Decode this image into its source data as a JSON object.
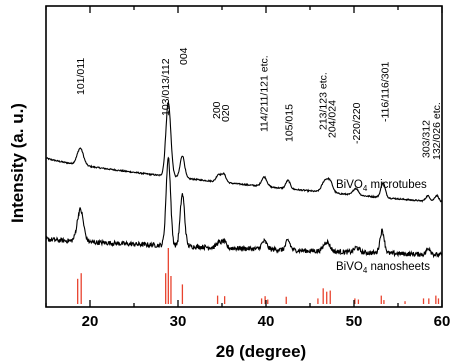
{
  "chart_data": {
    "type": "line",
    "xlabel": "2θ (degree)",
    "ylabel": "Intensity (a. u.)",
    "xlim": [
      15,
      60
    ],
    "x_ticks": [
      20,
      30,
      40,
      50,
      60
    ],
    "y_ticks_shown": false,
    "series": [
      {
        "name": "BiVO4 microtubes",
        "label_main": "BiVO",
        "label_sub": "4",
        "label_rest": " microtubes",
        "color": "#000000",
        "baseline_start": 0.86,
        "baseline_end": 0.06,
        "noise": 0.012,
        "peaks": [
          {
            "x": 18.9,
            "height": 0.3,
            "width": 0.35
          },
          {
            "x": 28.9,
            "height": 1.32,
            "width": 0.28
          },
          {
            "x": 30.5,
            "height": 0.4,
            "width": 0.25
          },
          {
            "x": 34.6,
            "height": 0.13,
            "width": 0.25
          },
          {
            "x": 35.2,
            "height": 0.15,
            "width": 0.25
          },
          {
            "x": 39.8,
            "height": 0.17,
            "width": 0.3
          },
          {
            "x": 42.5,
            "height": 0.15,
            "width": 0.25
          },
          {
            "x": 46.7,
            "height": 0.2,
            "width": 0.35
          },
          {
            "x": 47.3,
            "height": 0.18,
            "width": 0.3
          },
          {
            "x": 50.2,
            "height": 0.12,
            "width": 0.3
          },
          {
            "x": 53.3,
            "height": 0.26,
            "width": 0.25
          },
          {
            "x": 58.4,
            "height": 0.1,
            "width": 0.25
          },
          {
            "x": 59.4,
            "height": 0.12,
            "width": 0.25
          }
        ]
      },
      {
        "name": "BiVO4 nanosheets",
        "label_main": "BiVO",
        "label_sub": "4",
        "label_rest": " nanosheets",
        "color": "#000000",
        "baseline_start": 0.3,
        "baseline_end": 0.1,
        "noise": 0.03,
        "peaks": [
          {
            "x": 18.9,
            "height": 0.4,
            "width": 0.35
          },
          {
            "x": 28.9,
            "height": 1.1,
            "width": 0.25
          },
          {
            "x": 30.5,
            "height": 0.65,
            "width": 0.25
          },
          {
            "x": 34.6,
            "height": 0.06,
            "width": 0.25
          },
          {
            "x": 35.2,
            "height": 0.08,
            "width": 0.25
          },
          {
            "x": 39.8,
            "height": 0.1,
            "width": 0.3
          },
          {
            "x": 42.5,
            "height": 0.12,
            "width": 0.25
          },
          {
            "x": 46.9,
            "height": 0.12,
            "width": 0.35
          },
          {
            "x": 50.3,
            "height": 0.06,
            "width": 0.3
          },
          {
            "x": 53.2,
            "height": 0.28,
            "width": 0.25
          },
          {
            "x": 58.5,
            "height": 0.08,
            "width": 0.25
          }
        ]
      }
    ],
    "reference_lines": {
      "color": "#e8432e",
      "positions": [
        18.6,
        19.0,
        28.6,
        28.9,
        29.2,
        30.5,
        34.5,
        35.3,
        39.5,
        39.9,
        40.2,
        42.3,
        45.9,
        46.5,
        46.9,
        47.3,
        50.1,
        50.5,
        53.1,
        53.4,
        55.8,
        57.9,
        58.5,
        59.3,
        59.6
      ],
      "heights": [
        0.45,
        0.55,
        0.55,
        1.0,
        0.5,
        0.35,
        0.15,
        0.14,
        0.1,
        0.14,
        0.08,
        0.13,
        0.1,
        0.28,
        0.22,
        0.24,
        0.1,
        0.08,
        0.15,
        0.07,
        0.05,
        0.1,
        0.1,
        0.15,
        0.1
      ]
    },
    "annotations": [
      {
        "text": "101/011",
        "x": 18.9
      },
      {
        "text": "103/013/112",
        "x": 28.6
      },
      {
        "text": "004",
        "x": 30.6
      },
      {
        "text": "200",
        "x": 34.4
      },
      {
        "text": "020",
        "x": 35.4
      },
      {
        "text": "114/211/121 etc.",
        "x": 39.8
      },
      {
        "text": "105/015",
        "x": 42.6
      },
      {
        "text": "213/123 etc.",
        "x": 46.5
      },
      {
        "text": "204/024",
        "x": 47.5
      },
      {
        "text": "-220/220",
        "x": 50.3
      },
      {
        "text": "-116/116/301",
        "x": 53.5
      },
      {
        "text": "303/312",
        "x": 58.2
      },
      {
        "text": "132/026 etc.",
        "x": 59.4
      }
    ]
  }
}
